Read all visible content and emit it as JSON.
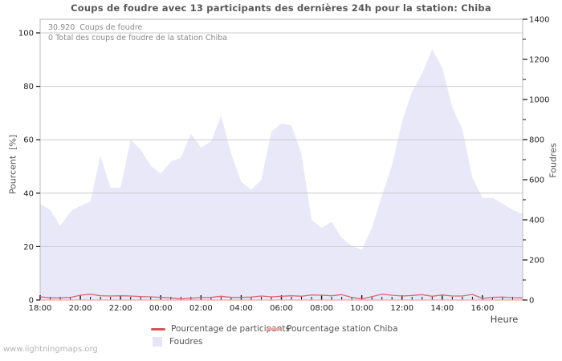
{
  "title": "Coups de foudre avec 13 participants des dernières 24h pour la station: Chiba",
  "annotations": {
    "total_strikes": "30.920  Coups de foudre",
    "station_total": "0 Total des coups de foudre de la station Chiba"
  },
  "watermark": "www.lightningmaps.org",
  "axes": {
    "x": {
      "title": "Heure",
      "tick_labels": [
        "18:00",
        "20:00",
        "22:00",
        "00:00",
        "02:00",
        "04:00",
        "06:00",
        "08:00",
        "10:00",
        "12:00",
        "14:00",
        "16:00"
      ],
      "minor_tick_minutes": 30
    },
    "y_left": {
      "title": "Pourcent  [%]",
      "tick_labels": [
        "0",
        "20",
        "40",
        "60",
        "80",
        "100"
      ],
      "range": [
        0,
        100
      ]
    },
    "y_right": {
      "title": "Foudres",
      "tick_labels": [
        "0",
        "200",
        "400",
        "600",
        "800",
        "1000",
        "1200",
        "1400"
      ],
      "minor_tick_step": 100,
      "range": [
        0,
        1400
      ]
    }
  },
  "legend": [
    {
      "label": "Pourcentage de participants",
      "color": "#d4555b",
      "type": "line"
    },
    {
      "label": "Pourcentage station Chiba",
      "color": "#f3a6a6",
      "type": "line"
    },
    {
      "label": "Foudres",
      "color": "#e6e6f8",
      "type": "area"
    }
  ],
  "colors": {
    "area_fill": "#e8e8f9",
    "participants_line": "#db686e",
    "station_line": "#f3a6a6",
    "gridline": "#cbcbcb",
    "plot_border": "#b8b8b8",
    "tick": "#111111"
  },
  "chart_data": {
    "type": "area",
    "title": "Coups de foudre avec 13 participants des dernières 24h pour la station: Chiba",
    "xlabel": "Heure",
    "ylabel_left": "Pourcent [%]",
    "ylabel_right": "Foudres",
    "x_start": "18:00",
    "x_span_hours": 24,
    "interval_minutes": 30,
    "y_left_range": [
      0,
      100
    ],
    "y_right_range": [
      0,
      1400
    ],
    "grid": "horizontal, every 20% of left axis",
    "legend_position": "below chart, two rows",
    "series": [
      {
        "name": "Foudres",
        "axis": "right",
        "style": "area",
        "values": [
          480,
          450,
          370,
          440,
          470,
          490,
          720,
          560,
          560,
          800,
          750,
          670,
          630,
          690,
          710,
          830,
          760,
          790,
          920,
          730,
          590,
          550,
          600,
          840,
          880,
          870,
          730,
          400,
          360,
          390,
          310,
          270,
          250,
          360,
          520,
          670,
          890,
          1040,
          1130,
          1250,
          1160,
          960,
          850,
          610,
          510,
          510,
          480,
          450,
          430
        ]
      },
      {
        "name": "Pourcentage de participants",
        "axis": "left",
        "style": "line",
        "values": [
          1.2,
          0.8,
          0.8,
          1.0,
          1.8,
          2.2,
          1.6,
          1.5,
          1.6,
          1.5,
          1.3,
          1.2,
          1.0,
          0.8,
          0.4,
          0.7,
          0.9,
          1.0,
          1.4,
          1.0,
          1.0,
          1.1,
          1.5,
          1.2,
          1.4,
          1.6,
          1.4,
          1.9,
          1.8,
          1.6,
          2.0,
          1.0,
          0.4,
          1.3,
          2.2,
          1.8,
          1.5,
          1.7,
          2.0,
          1.4,
          1.9,
          1.5,
          1.5,
          2.1,
          0.6,
          1.0,
          1.1,
          0.9,
          0.8
        ]
      },
      {
        "name": "Pourcentage station Chiba",
        "axis": "left",
        "style": "line",
        "constant_value": 0
      }
    ]
  }
}
